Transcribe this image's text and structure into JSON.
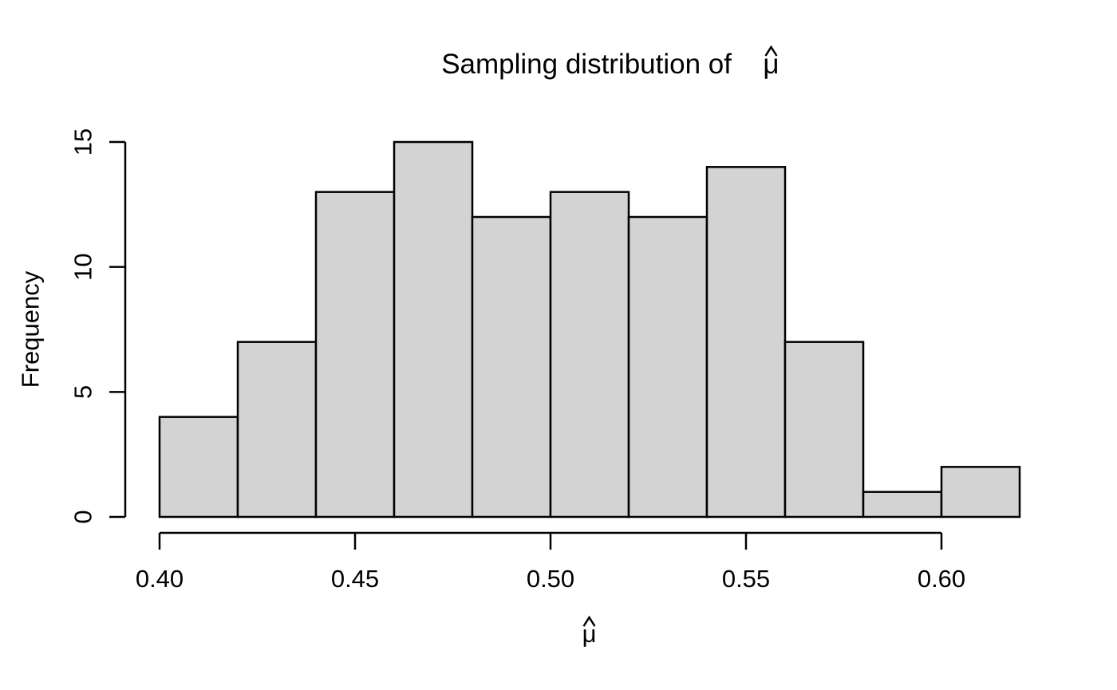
{
  "chart_data": {
    "type": "bar",
    "chart_kind": "histogram",
    "title": "Sampling distribution of μ̂",
    "title_prefix": "Sampling distribution of",
    "title_symbol": "μ",
    "hat_accent": "^",
    "xlabel": "μ̂",
    "xlabel_symbol": "μ",
    "ylabel": "Frequency",
    "bin_edges": [
      0.4,
      0.42,
      0.44,
      0.46,
      0.48,
      0.5,
      0.52,
      0.54,
      0.56,
      0.58,
      0.6,
      0.62
    ],
    "counts": [
      4,
      7,
      13,
      15,
      12,
      13,
      12,
      14,
      7,
      1,
      2
    ],
    "x_tick_values": [
      0.4,
      0.45,
      0.5,
      0.55,
      0.6
    ],
    "x_tick_labels": [
      "0.40",
      "0.45",
      "0.50",
      "0.55",
      "0.60"
    ],
    "y_tick_values": [
      0,
      5,
      10,
      15
    ],
    "y_tick_labels": [
      "0",
      "5",
      "10",
      "15"
    ],
    "xlim": [
      0.4,
      0.62
    ],
    "ylim": [
      0,
      15
    ],
    "grid": false,
    "legend_position": null,
    "colors": {
      "bar_fill": "#d3d3d3",
      "bar_border": "#000000",
      "axis": "#000000",
      "text": "#000000",
      "background": "#ffffff"
    }
  }
}
